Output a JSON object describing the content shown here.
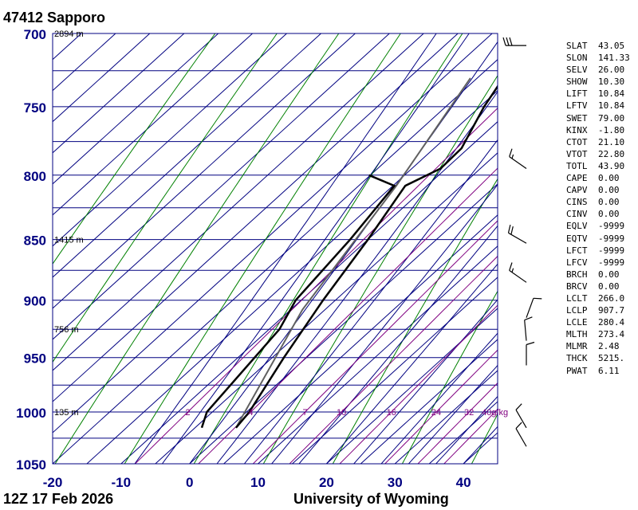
{
  "header": {
    "station": "47412  Sapporo"
  },
  "footer": {
    "time": "12Z 17 Feb 2026",
    "source": "University of Wyoming"
  },
  "colors": {
    "isobar": "#000080",
    "isotherm": "#000080",
    "dry_adiabat": "#008000",
    "moist_adiabat": "#000080",
    "mixing_ratio": "#800080",
    "profile": "#000000",
    "parcel": "#606060",
    "axis_label": "#000080",
    "mixing_label": "#800080"
  },
  "chart_data": {
    "type": "skew-t",
    "pressure_levels": [
      700,
      750,
      800,
      850,
      900,
      950,
      1000,
      1050
    ],
    "pressure_labeled": [
      700,
      750,
      800,
      850,
      900,
      950,
      1000,
      1050
    ],
    "pressure_range": [
      700,
      1050
    ],
    "temperature_range": [
      -20,
      45
    ],
    "temperature_ticks": [
      -20,
      -10,
      0,
      10,
      20,
      30,
      40
    ],
    "height_labels": [
      {
        "p": 700,
        "label": "2894 m"
      },
      {
        "p": 850,
        "label": "1415 m"
      },
      {
        "p": 925,
        "label": "756 m"
      },
      {
        "p": 1000,
        "label": "135 m"
      }
    ],
    "mixing_ratio_labels": [
      "2",
      "4",
      "7",
      "10",
      "16",
      "24",
      "32",
      "40g/kg"
    ],
    "mixing_ratio_values": [
      2,
      4,
      7,
      10,
      16,
      24,
      32,
      40
    ],
    "temperature_profile": [
      {
        "p": 1015,
        "t": 1.0
      },
      {
        "p": 1000,
        "t": 0.4
      },
      {
        "p": 950,
        "t": -3.3
      },
      {
        "p": 900,
        "t": -6.8
      },
      {
        "p": 850,
        "t": -10.0
      },
      {
        "p": 808,
        "t": -13.2
      },
      {
        "p": 795,
        "t": -10.8
      },
      {
        "p": 780,
        "t": -11.0
      },
      {
        "p": 750,
        "t": -14.4
      },
      {
        "p": 700,
        "t": -19.0
      }
    ],
    "dewpoint_profile": [
      {
        "p": 1015,
        "t": -4.0
      },
      {
        "p": 1000,
        "t": -5.8
      },
      {
        "p": 925,
        "t": -8.5
      },
      {
        "p": 900,
        "t": -10.8
      },
      {
        "p": 850,
        "t": -12.6
      },
      {
        "p": 808,
        "t": -14.8
      },
      {
        "p": 800,
        "t": -20.2
      }
    ],
    "parcel_profile": [
      {
        "p": 1015,
        "t": 1.0
      },
      {
        "p": 908,
        "t": -8.3
      },
      {
        "p": 808,
        "t": -14.5
      },
      {
        "p": 730,
        "t": -21.0
      }
    ],
    "wind_barbs": [
      {
        "p": 708,
        "dir": 270,
        "speed": 30
      },
      {
        "p": 795,
        "dir": 305,
        "speed": 15
      },
      {
        "p": 853,
        "dir": 300,
        "speed": 20
      },
      {
        "p": 885,
        "dir": 305,
        "speed": 15
      },
      {
        "p": 915,
        "dir": 20,
        "speed": 10
      },
      {
        "p": 935,
        "dir": 355,
        "speed": 10
      },
      {
        "p": 957,
        "dir": 360,
        "speed": 10
      },
      {
        "p": 1015,
        "dir": 330,
        "speed": 10
      },
      {
        "p": 1033,
        "dir": 330,
        "speed": 10
      }
    ]
  },
  "indices": [
    {
      "name": "SLAT",
      "value": "43.05"
    },
    {
      "name": "SLON",
      "value": "141.33"
    },
    {
      "name": "SELV",
      "value": "26.00"
    },
    {
      "name": "SHOW",
      "value": "10.30"
    },
    {
      "name": "LIFT",
      "value": "10.84"
    },
    {
      "name": "LFTV",
      "value": "10.84"
    },
    {
      "name": "SWET",
      "value": "79.00"
    },
    {
      "name": "KINX",
      "value": "-1.80"
    },
    {
      "name": "CTOT",
      "value": "21.10"
    },
    {
      "name": "VTOT",
      "value": "22.80"
    },
    {
      "name": "TOTL",
      "value": "43.90"
    },
    {
      "name": "CAPE",
      "value": "0.00"
    },
    {
      "name": "CAPV",
      "value": "0.00"
    },
    {
      "name": "CINS",
      "value": "0.00"
    },
    {
      "name": "CINV",
      "value": "0.00"
    },
    {
      "name": "EQLV",
      "value": "-9999"
    },
    {
      "name": "EQTV",
      "value": "-9999"
    },
    {
      "name": "LFCT",
      "value": "-9999"
    },
    {
      "name": "LFCV",
      "value": "-9999"
    },
    {
      "name": "BRCH",
      "value": "0.00"
    },
    {
      "name": "BRCV",
      "value": "0.00"
    },
    {
      "name": "LCLT",
      "value": "266.0"
    },
    {
      "name": "LCLP",
      "value": "907.7"
    },
    {
      "name": "LCLE",
      "value": "280.4"
    },
    {
      "name": "MLTH",
      "value": "273.4"
    },
    {
      "name": "MLMR",
      "value": "2.48"
    },
    {
      "name": "THCK",
      "value": "5215."
    },
    {
      "name": "PWAT",
      "value": "6.11"
    }
  ]
}
